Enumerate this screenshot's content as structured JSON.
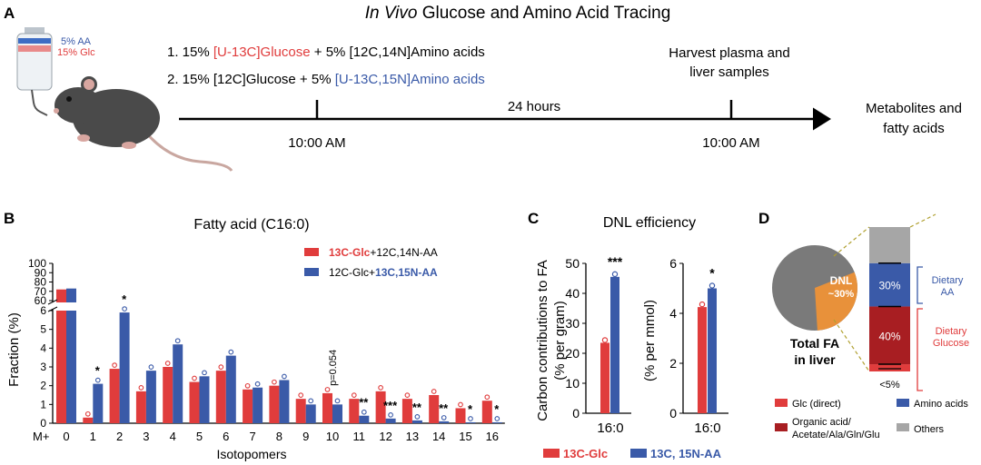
{
  "panelA": {
    "label": "A",
    "title_italic": "In Vivo",
    "title_rest": " Glucose and Amino Acid Tracing",
    "bottle": {
      "aa": "5% AA",
      "glc": "15% Glc"
    },
    "cond1": {
      "prefix": "1. 15% ",
      "tracer": "[U-13C]Glucose",
      "mid": " + 5% ",
      "other": "[12C,14N]Amino acids"
    },
    "cond2": {
      "prefix": "2. 15% ",
      "other": "[12C]Glucose",
      "mid": " + 5% ",
      "tracer": "[U-13C,15N]Amino acids"
    },
    "duration": "24 hours",
    "time_start": "10:00 AM",
    "time_end": "10:00 AM",
    "harvest_line1": "Harvest plasma and",
    "harvest_line2": "liver samples",
    "output_line1": "Metabolites and",
    "output_line2": "fatty acids",
    "colors": {
      "red": "#e03c3c",
      "blue": "#3a5aa8"
    }
  },
  "chart_data": [
    {
      "panel": "B",
      "type": "bar",
      "title": "Fatty acid (C16:0)",
      "xlabel": "Isotopomers",
      "ylabel": "Fraction (%)",
      "x_prefix": "M+",
      "categories": [
        "0",
        "1",
        "2",
        "3",
        "4",
        "5",
        "6",
        "7",
        "8",
        "9",
        "10",
        "11",
        "12",
        "13",
        "14",
        "15",
        "16"
      ],
      "y_ticks_lower": [
        "0",
        "1",
        "2",
        "3",
        "4",
        "5",
        "6"
      ],
      "y_ticks_upper": [
        "60",
        "70",
        "80",
        "90",
        "100"
      ],
      "series": [
        {
          "name": "13C-Glc+12C,14N-AA",
          "color": "#e03c3c",
          "values": [
            72,
            0.3,
            2.9,
            1.7,
            3.0,
            2.2,
            2.8,
            1.8,
            2.0,
            1.3,
            1.6,
            1.3,
            1.7,
            1.3,
            1.5,
            0.8,
            1.2
          ]
        },
        {
          "name": "12C-Glc+13C,15N-AA",
          "color": "#3a5aa8",
          "values": [
            73,
            2.1,
            5.9,
            2.8,
            4.2,
            2.5,
            3.6,
            1.9,
            2.3,
            1.0,
            1.0,
            0.4,
            0.25,
            0.15,
            0.1,
            0.05,
            0.05
          ]
        }
      ],
      "significance": [
        "",
        "*",
        "*",
        "",
        "",
        "",
        "",
        "",
        "",
        "",
        "p=0.054",
        "**",
        "***",
        "**",
        "**",
        "*",
        "*"
      ],
      "legend": [
        {
          "bold": "13C-Glc",
          "rest": "+12C,14N-AA"
        },
        {
          "bold": "13C,15N-AA",
          "rest": "12C-Glc+"
        }
      ]
    },
    {
      "panel": "C",
      "type": "bar",
      "title": "DNL efficiency",
      "subcharts": [
        {
          "ylabel_line1": "Carbon contributions to FA",
          "ylabel_line2": "(% per gram)",
          "category": "16:0",
          "ylim": [
            0,
            50
          ],
          "y_ticks": [
            "0",
            "10",
            "20",
            "30",
            "40",
            "50"
          ],
          "values": [
            23.5,
            45.5
          ],
          "significance": "***"
        },
        {
          "ylabel_line1": "",
          "ylabel_line2": "(% per mmol)",
          "category": "16:0",
          "ylim": [
            0,
            6
          ],
          "y_ticks": [
            "0",
            "2",
            "4",
            "6"
          ],
          "values": [
            4.25,
            5.0
          ],
          "significance": "*"
        }
      ],
      "legend": [
        "13C-Glc",
        "13C, 15N-AA"
      ]
    },
    {
      "panel": "D",
      "type": "pie",
      "pie_labels": {
        "dnl": "DNL",
        "dnl_pct": "~30%"
      },
      "pie_values": {
        "dnl": 30,
        "others": 70
      },
      "caption_line1": "Total FA",
      "caption_line2": "in liver",
      "stack_values": [
        {
          "label": "<5%",
          "value": 5,
          "color": "#e03c3c"
        },
        {
          "label": "40%",
          "value": 40,
          "color": "#a81e22"
        },
        {
          "label": "30%",
          "value": 30,
          "color": "#3a5aa8"
        },
        {
          "label": "",
          "value": 25,
          "color": "#a6a6a6"
        }
      ],
      "brace_aa": [
        "Dietary",
        "AA"
      ],
      "brace_glc": [
        "Dietary",
        "Glucose"
      ],
      "legend": [
        {
          "text": "Glc (direct)",
          "color": "#e03c3c"
        },
        {
          "text": "Amino acids",
          "color": "#3a5aa8"
        },
        {
          "text": "Organic acid/",
          "text2": "Acetate/Ala/Gln/Glu",
          "color": "#a81e22"
        },
        {
          "text": "Others",
          "color": "#a6a6a6"
        }
      ]
    }
  ]
}
